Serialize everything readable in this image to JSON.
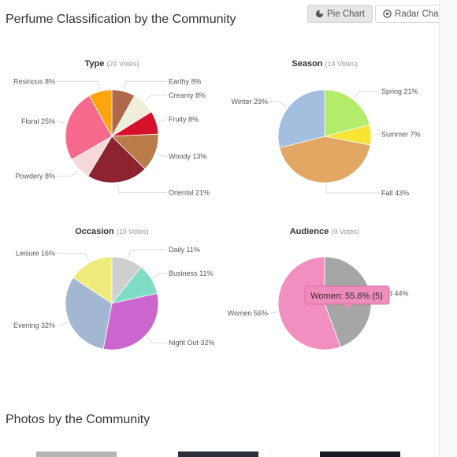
{
  "page": {
    "title": "Perfume Classification by the Community",
    "photos_title": "Photos by the Community"
  },
  "toolbar": {
    "pie_label": "Pie Chart",
    "radar_label": "Radar Chart",
    "pie_icon": "pie-chart-icon",
    "radar_icon": "radar-target-icon"
  },
  "tooltip": {
    "text": "Women: 55.6% (5)"
  },
  "colors": {
    "accent_active": "#e6e6e6",
    "tooltip_bg": "#f08cbc"
  },
  "chart_data": [
    {
      "type": "pie",
      "title": "Type",
      "votes": "(24 Votes)",
      "slices": [
        {
          "label": "Earthy 8%",
          "value": 8,
          "color": "#b0684a"
        },
        {
          "label": "Creamy 8%",
          "value": 8,
          "color": "#eeeedb"
        },
        {
          "label": "Fruity 8%",
          "value": 8,
          "color": "#d6112a"
        },
        {
          "label": "Woody 13%",
          "value": 13,
          "color": "#b97b4a"
        },
        {
          "label": "Oriental 21%",
          "value": 21,
          "color": "#8e2330"
        },
        {
          "label": "Powdery 8%",
          "value": 8,
          "color": "#f6d8d8"
        },
        {
          "label": "Floral 25%",
          "value": 25,
          "color": "#f76a8c"
        },
        {
          "label": "Resinous 8%",
          "value": 8,
          "color": "#fca50e"
        }
      ]
    },
    {
      "type": "pie",
      "title": "Season",
      "votes": "(14 Votes)",
      "slices": [
        {
          "label": "Spring 21%",
          "value": 21,
          "color": "#b3ec6a"
        },
        {
          "label": "Summer 7%",
          "value": 7,
          "color": "#f7e435"
        },
        {
          "label": "Fall 43%",
          "value": 43,
          "color": "#e3a764"
        },
        {
          "label": "Winter 29%",
          "value": 29,
          "color": "#a3bedf"
        }
      ]
    },
    {
      "type": "pie",
      "title": "Occasion",
      "votes": "(19 Votes)",
      "slices": [
        {
          "label": "Daily 11%",
          "value": 11,
          "color": "#cfcfcf"
        },
        {
          "label": "Business 11%",
          "value": 11,
          "color": "#7fdcc4"
        },
        {
          "label": "Night Out 32%",
          "value": 32,
          "color": "#cc66cf"
        },
        {
          "label": "Evening 32%",
          "value": 32,
          "color": "#a3b7d2"
        },
        {
          "label": "Leisure 16%",
          "value": 16,
          "color": "#efeb7a"
        }
      ]
    },
    {
      "type": "pie",
      "title": "Audience",
      "votes": "(9 Votes)",
      "slices": [
        {
          "label": "Women 56%",
          "value": 55.6,
          "color": "#f28fc0"
        },
        {
          "label": "Old 44%",
          "value": 44.4,
          "color": "#a6a6a6"
        }
      ]
    }
  ]
}
